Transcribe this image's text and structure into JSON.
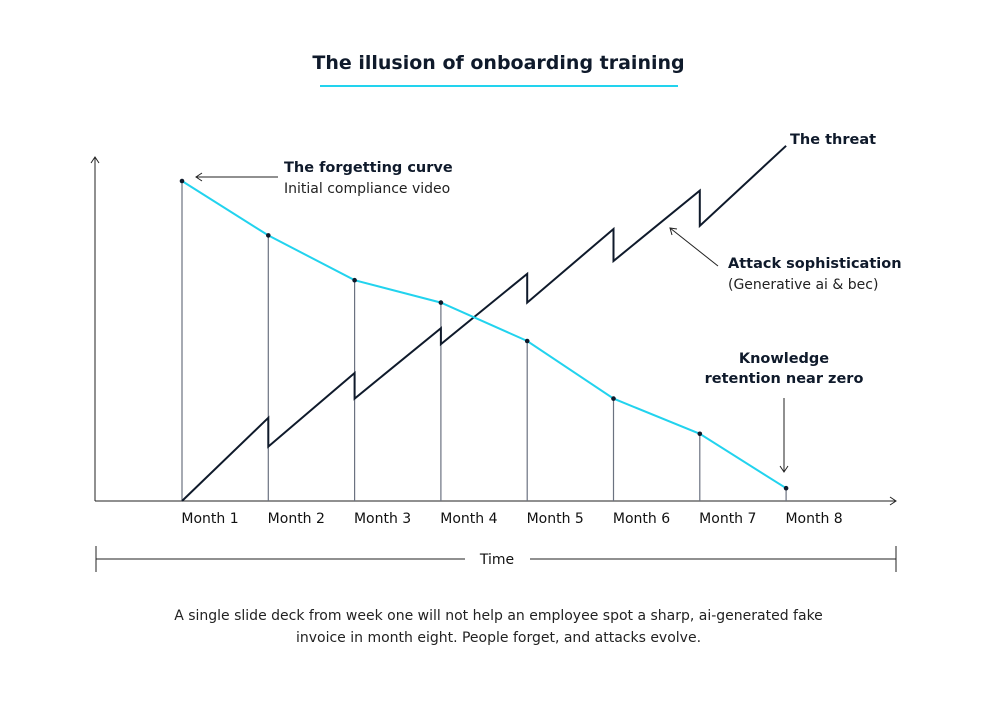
{
  "chart_data": {
    "type": "line",
    "title": "The illusion of onboarding training",
    "categories": [
      "Month 1",
      "Month 2",
      "Month 3",
      "Month 4",
      "Month 5",
      "Month 6",
      "Month 7",
      "Month 8"
    ],
    "xlabel": "Time",
    "ylabel": "",
    "grid": false,
    "series": [
      {
        "name": "The forgetting curve",
        "color": "#22d3ee",
        "values": [
          100,
          83,
          69,
          62,
          50,
          32,
          21,
          4
        ]
      },
      {
        "name": "The threat",
        "color": "#0f1a2b",
        "points": [
          [
            1,
            0
          ],
          [
            2,
            26
          ],
          [
            2,
            17
          ],
          [
            3,
            40
          ],
          [
            3,
            32
          ],
          [
            4,
            54
          ],
          [
            4,
            49
          ],
          [
            5,
            71
          ],
          [
            5,
            62
          ],
          [
            6,
            85
          ],
          [
            6,
            75
          ],
          [
            7,
            97
          ],
          [
            7,
            86
          ],
          [
            8.0,
            111
          ]
        ]
      }
    ],
    "annotations": {
      "forgetting_title": "The forgetting curve",
      "forgetting_sub": "Initial compliance video",
      "threat": "The threat",
      "attack_title": "Attack sophistication",
      "attack_sub": "(Generative ai & bec)",
      "retention_line1": "Knowledge",
      "retention_line2": "retention near zero"
    }
  },
  "caption": "A single slide deck from week one will not help an employee spot a sharp, ai-generated fake invoice in month eight. People forget, and attacks evolve."
}
